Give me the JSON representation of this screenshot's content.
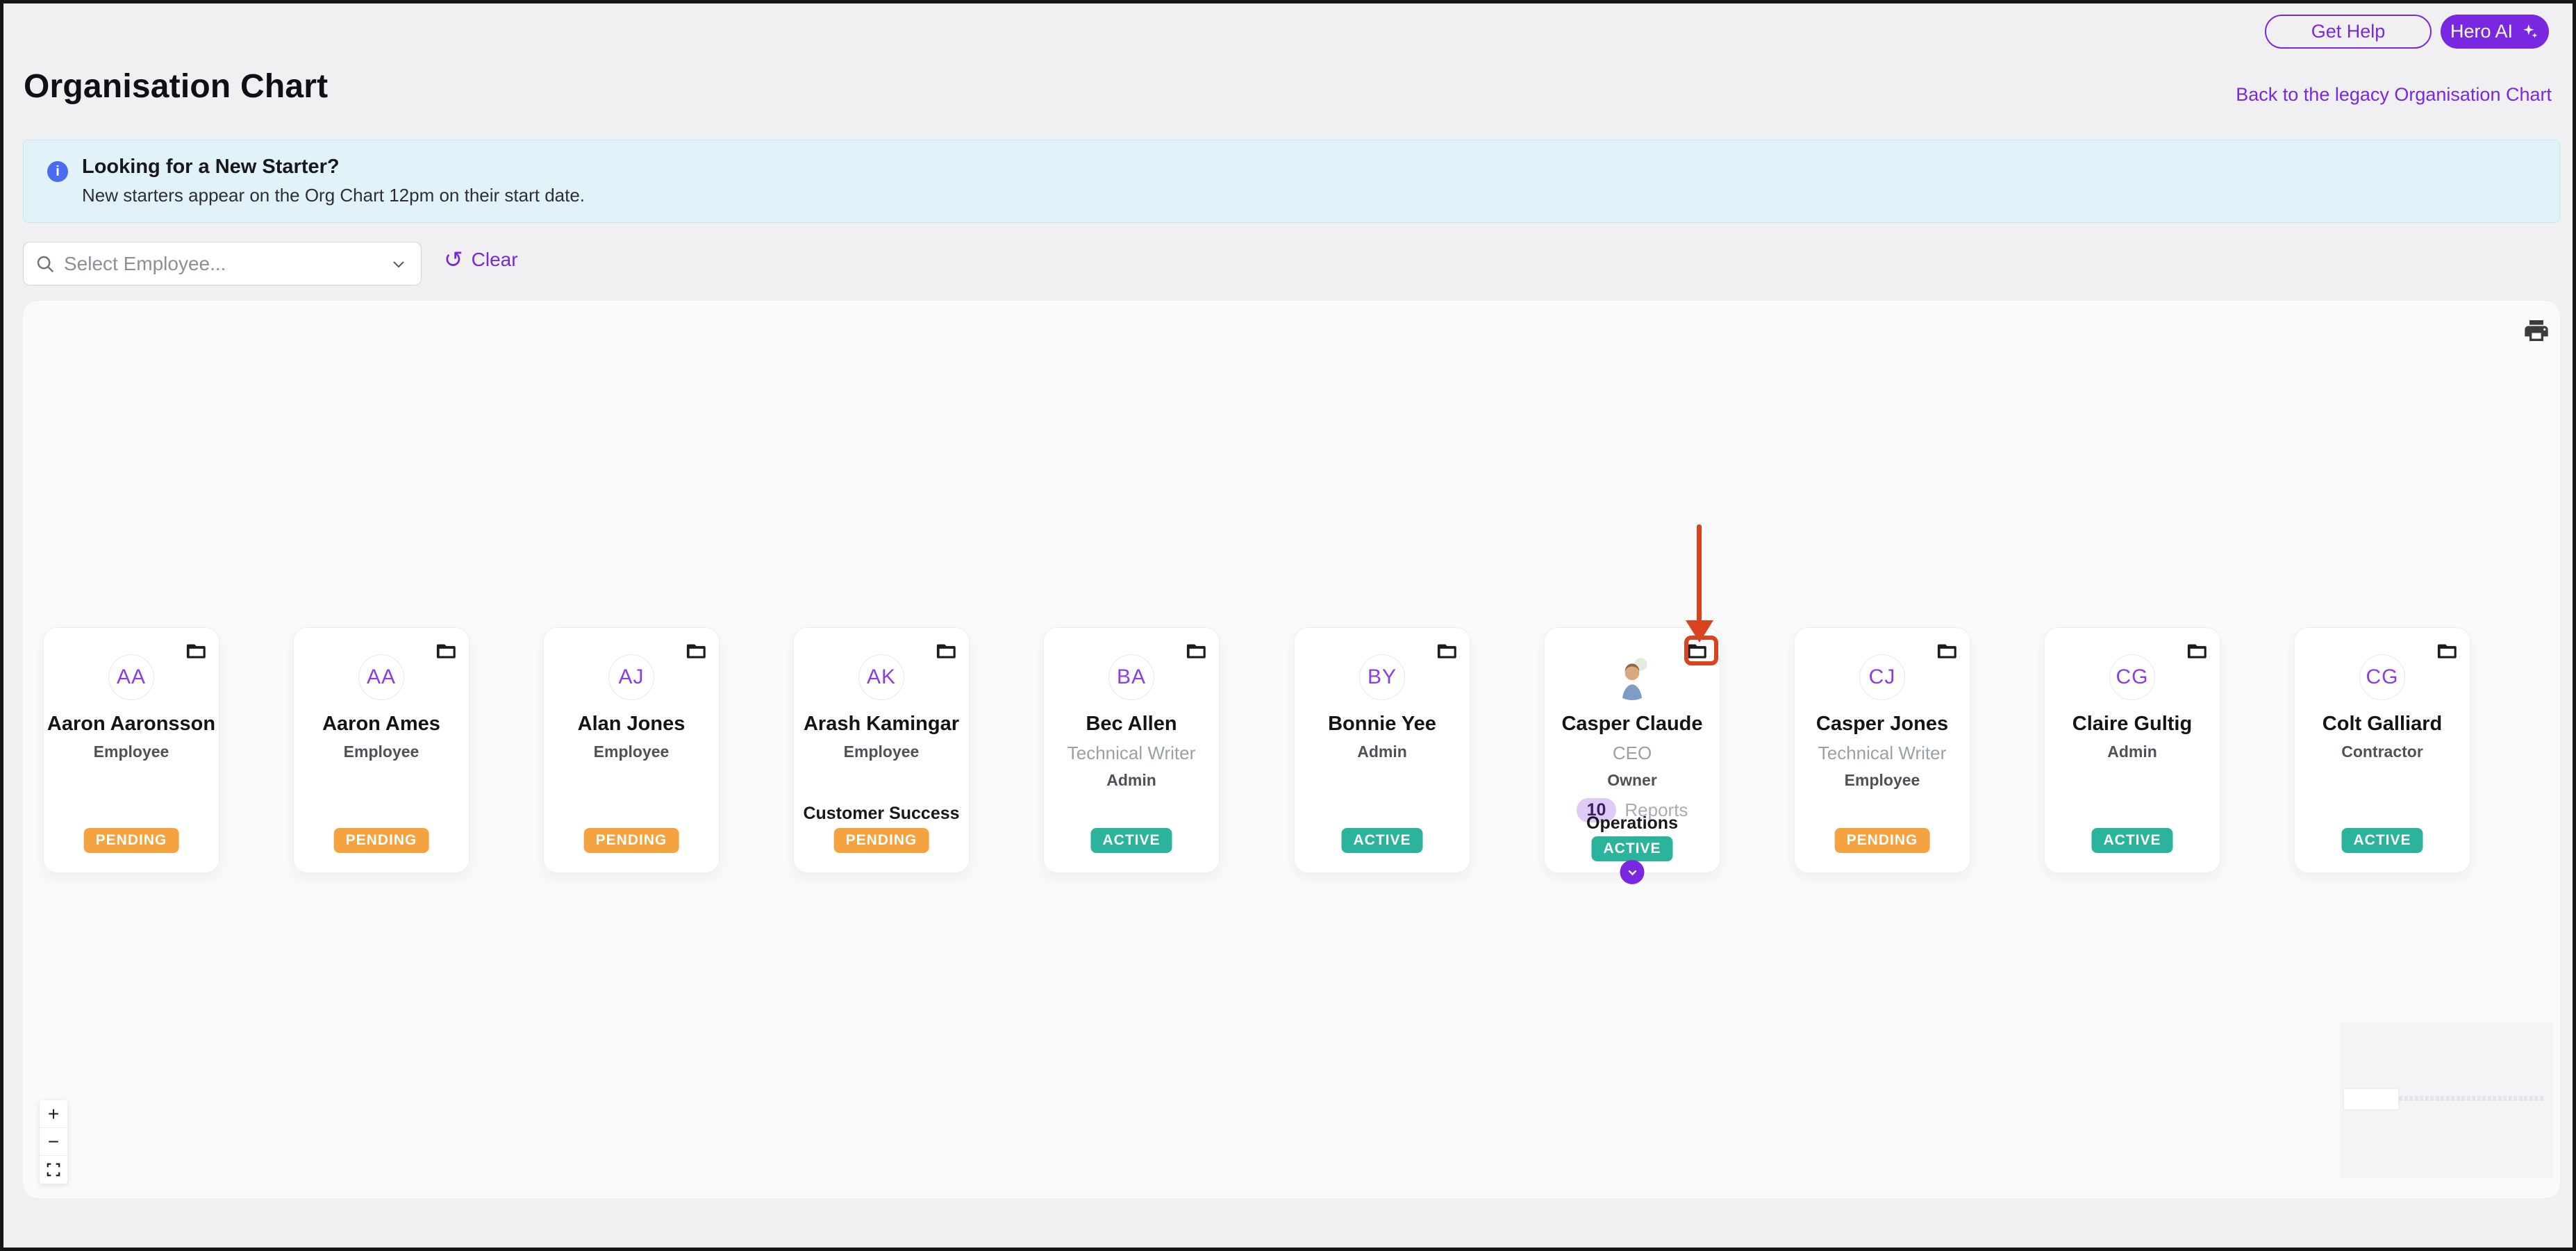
{
  "header": {
    "get_help_label": "Get Help",
    "hero_ai_label": "Hero AI",
    "title": "Organisation Chart",
    "legacy_link": "Back to the legacy Organisation Chart"
  },
  "banner": {
    "icon": "info-icon",
    "title": "Looking for a New Starter?",
    "subtitle": "New starters appear on the Org Chart 12pm on their start date."
  },
  "toolbar": {
    "select_placeholder": "Select Employee...",
    "clear_label": "Clear",
    "clear_icon": "reset-icon",
    "clear_icon_glyph": "↺"
  },
  "banner_icon_glyph": "i",
  "org_chart": {
    "employees": [
      {
        "initials": "AA",
        "name": "Aaron Aaronsson",
        "role": "",
        "access": "Employee",
        "department": "",
        "status": "PENDING"
      },
      {
        "initials": "AA",
        "name": "Aaron Ames",
        "role": "",
        "access": "Employee",
        "department": "",
        "status": "PENDING"
      },
      {
        "initials": "AJ",
        "name": "Alan Jones",
        "role": "",
        "access": "Employee",
        "department": "",
        "status": "PENDING"
      },
      {
        "initials": "AK",
        "name": "Arash Kamingar",
        "role": "",
        "access": "Employee",
        "department": "Customer Success",
        "status": "PENDING"
      },
      {
        "initials": "BA",
        "name": "Bec Allen",
        "role": "Technical Writer",
        "access": "Admin",
        "department": "",
        "status": "ACTIVE"
      },
      {
        "initials": "BY",
        "name": "Bonnie Yee",
        "role": "",
        "access": "Admin",
        "department": "",
        "status": "ACTIVE"
      },
      {
        "initials": "",
        "name": "Casper Claude",
        "role": "CEO",
        "access": "Owner",
        "department": "Operations",
        "status": "ACTIVE",
        "photo": true,
        "reports_count": "10",
        "reports_label": "Reports",
        "expandable": true,
        "annotated": true
      },
      {
        "initials": "CJ",
        "name": "Casper Jones",
        "role": "Technical Writer",
        "access": "Employee",
        "department": "",
        "status": "PENDING"
      },
      {
        "initials": "CG",
        "name": "Claire Gultig",
        "role": "",
        "access": "Admin",
        "department": "",
        "status": "ACTIVE"
      },
      {
        "initials": "CG",
        "name": "Colt Galliard",
        "role": "",
        "access": "Contractor",
        "department": "",
        "status": "ACTIVE"
      }
    ],
    "status_colors": {
      "PENDING": "#f5a340",
      "ACTIVE": "#2bb39b"
    },
    "zoom_controls": {
      "zoom_in_label": "+",
      "zoom_out_label": "−",
      "fit_icon": "fit-view-icon"
    },
    "print_icon": "print-icon",
    "minimap": {
      "node_count": 38
    }
  },
  "annotation": {
    "color": "#d9441f",
    "description": "red arrow pointing down at folder icon of Casper Claude card, folder icon outlined with red rounded box"
  },
  "colors": {
    "primary_purple": "#7a27e2",
    "avatar_initials_purple": "#8a3cea",
    "pending_badge": "#f5a340",
    "active_badge": "#2bb39b",
    "banner_bg": "#e1f3f9",
    "banner_icon_blue": "#4a6cf0",
    "page_bg": "#f0f0f2",
    "canvas_bg": "#fafafa",
    "reports_pill_bg": "#dfcbf8",
    "annotation_red": "#d9441f"
  }
}
